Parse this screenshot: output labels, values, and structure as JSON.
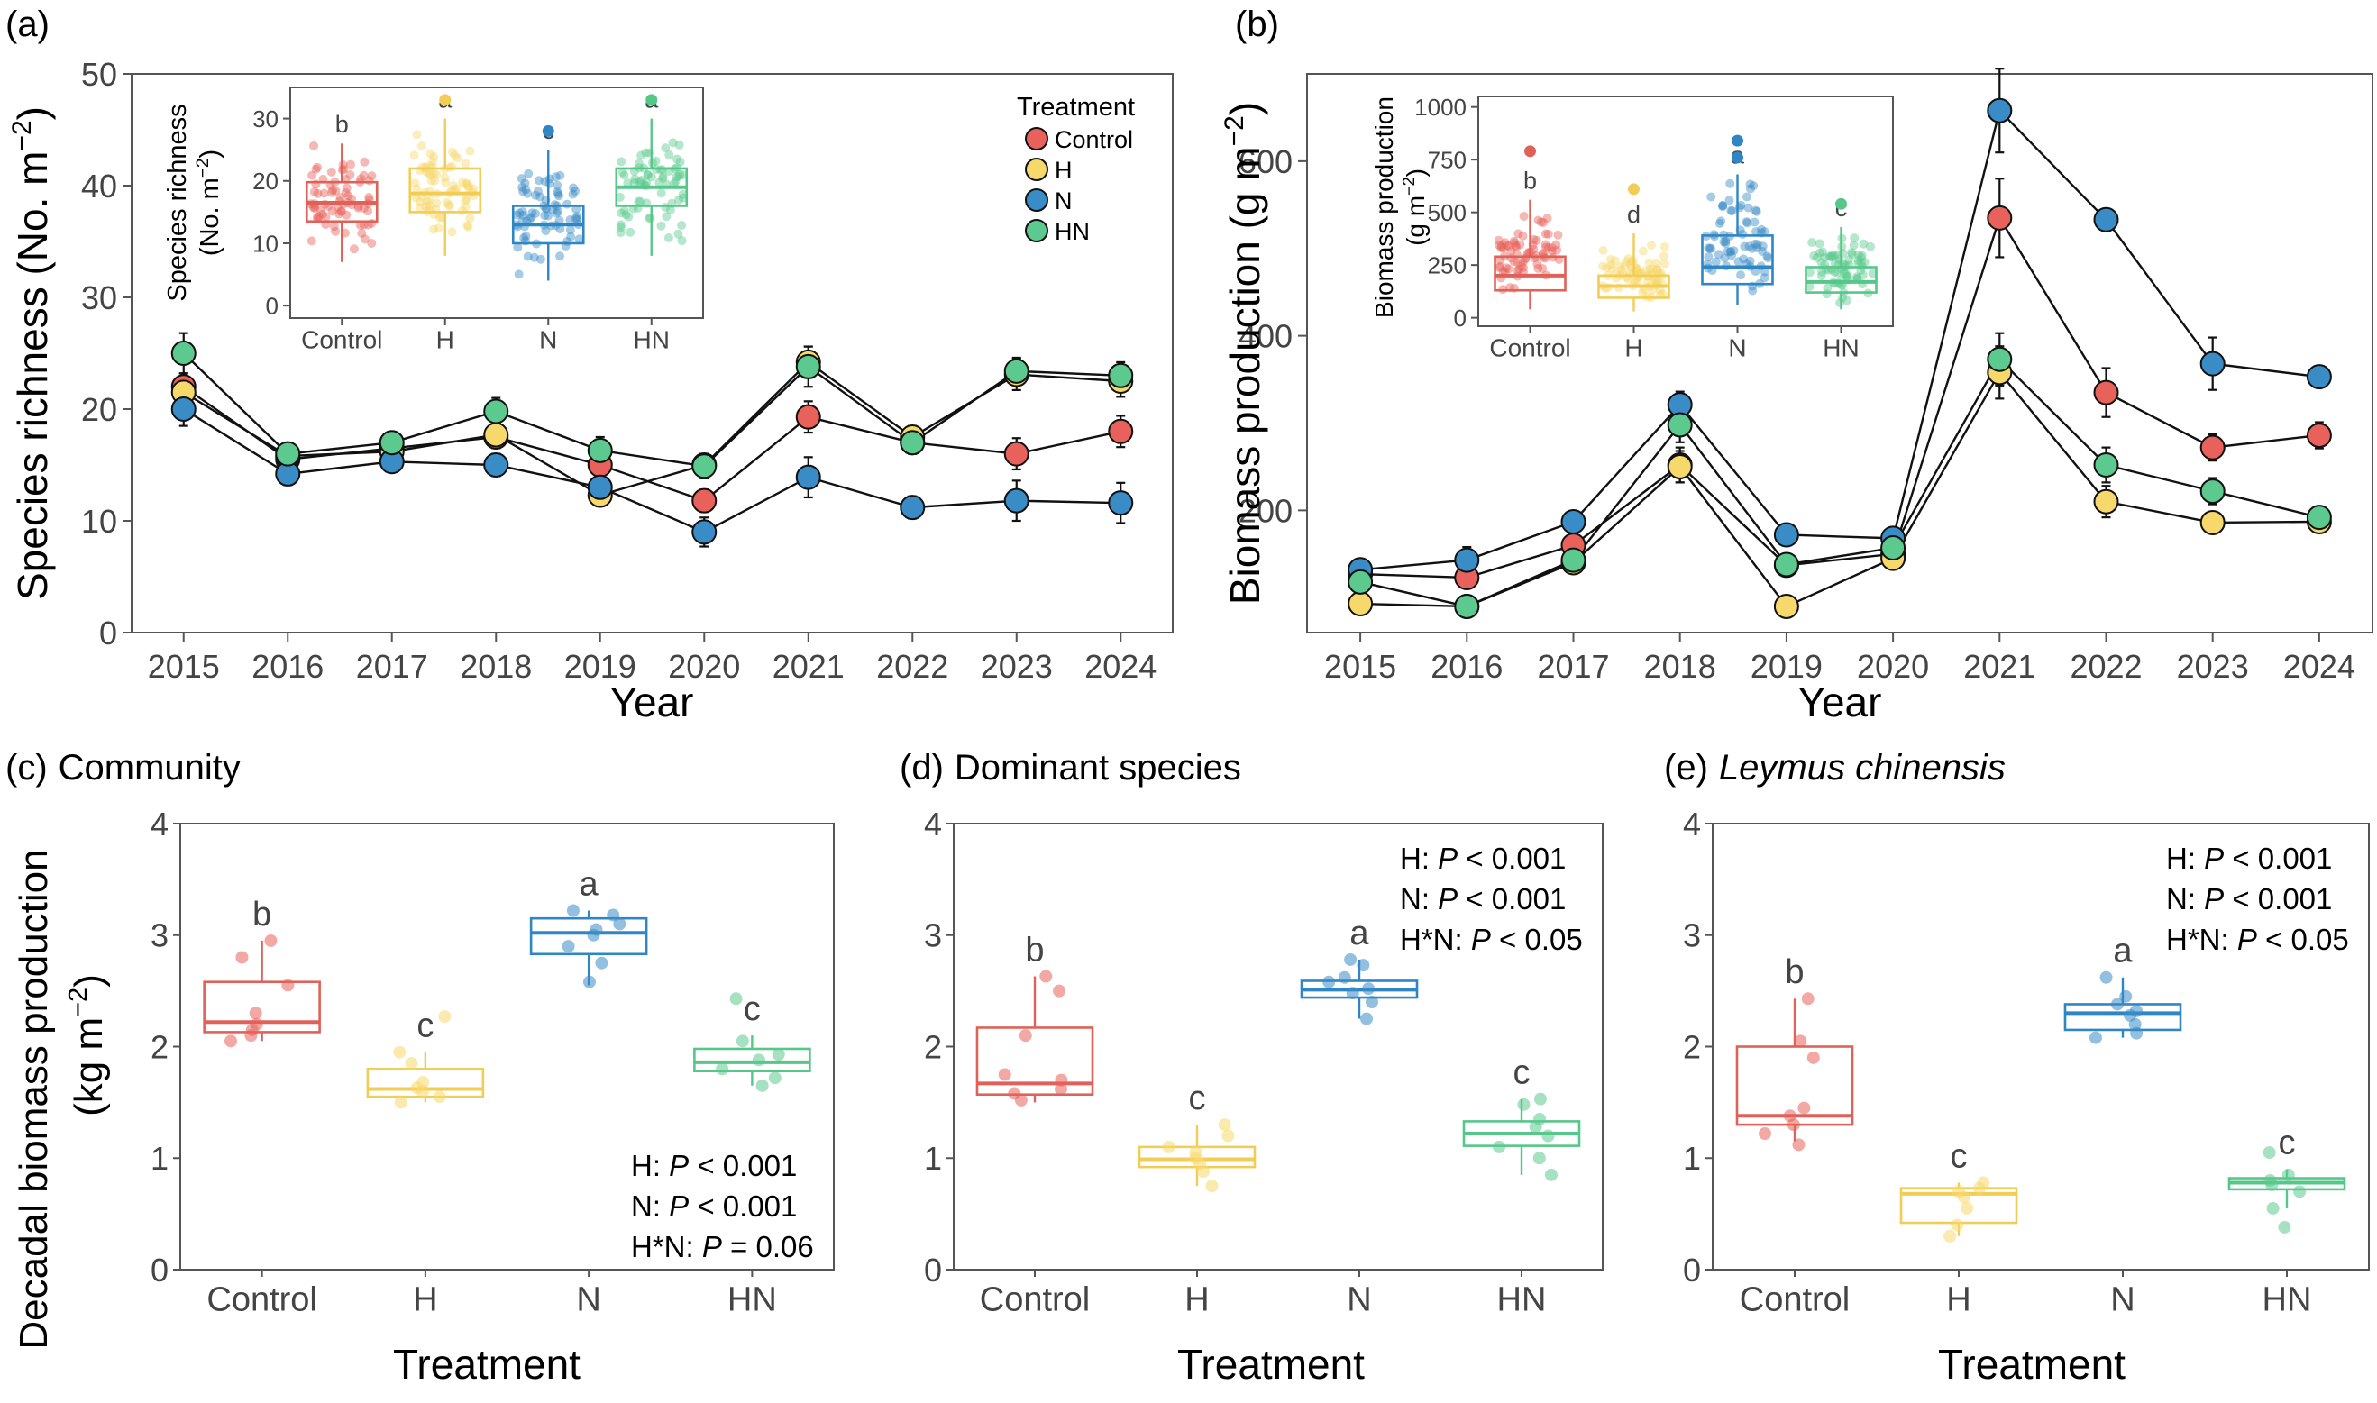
{
  "colors": {
    "Control": "#e8625b",
    "H": "#f7d86b",
    "N": "#3a8cc6",
    "HN": "#5cc98f"
  },
  "stroke_colors": {
    "Control": "#e06158",
    "H": "#f2cd55",
    "N": "#2f86c4",
    "HN": "#55c789"
  },
  "treatments": [
    "Control",
    "H",
    "N",
    "HN"
  ],
  "chart_data": [
    {
      "id": "a",
      "type": "line",
      "panel_label": "(a)",
      "xlabel": "Year",
      "ylabel": "Species richness (No. m",
      "ylabel_sup": "−2",
      "ylabel_close": ")",
      "ylim": [
        0,
        50
      ],
      "yticks": [
        "0",
        "10",
        "20",
        "30",
        "40",
        "50"
      ],
      "x": [
        "2015",
        "2016",
        "2017",
        "2018",
        "2019",
        "2020",
        "2021",
        "2022",
        "2023",
        "2024"
      ],
      "legend_title": "Treatment",
      "legend": [
        "Control",
        "H",
        "N",
        "HN"
      ],
      "series": [
        {
          "name": "Control",
          "values": [
            22,
            15.5,
            16.5,
            17.5,
            15,
            11.8,
            19.3,
            17,
            16,
            18
          ],
          "err": [
            1.2,
            0.8,
            0.8,
            1.0,
            1.0,
            1.0,
            1.4,
            1.0,
            1.4,
            1.4
          ]
        },
        {
          "name": "H",
          "values": [
            21.5,
            15.8,
            16.2,
            17.7,
            12.3,
            15,
            24.2,
            17.5,
            23.1,
            22.5
          ],
          "err": [
            1.2,
            0.8,
            0.8,
            1.0,
            1.0,
            1.0,
            1.4,
            1.0,
            1.4,
            1.4
          ]
        },
        {
          "name": "N",
          "values": [
            20,
            14.2,
            15.3,
            15,
            13,
            9,
            13.9,
            11.2,
            11.8,
            11.6
          ],
          "err": [
            1.5,
            1.0,
            0.8,
            1.0,
            1.2,
            1.3,
            1.8,
            1.0,
            1.8,
            1.8
          ]
        },
        {
          "name": "HN",
          "values": [
            25,
            16,
            17,
            19.8,
            16.3,
            14.9,
            23.8,
            17,
            23.4,
            23
          ],
          "err": [
            1.8,
            0.8,
            0.8,
            1.2,
            1.2,
            1.1,
            1.8,
            1.0,
            1.2,
            1.2
          ]
        }
      ],
      "inset": {
        "type": "box",
        "ylabel": "Species richness",
        "ylabel2": "(No. m",
        "ylabel2_sup": "−2",
        "ylabel2_close": ")",
        "ylim": [
          -2,
          35
        ],
        "yticks": [
          "0",
          "10",
          "20",
          "30"
        ],
        "categories": [
          "Control",
          "H",
          "N",
          "HN"
        ],
        "letters": [
          "b",
          "a",
          "c",
          "a"
        ],
        "boxes": [
          {
            "name": "Control",
            "min": 7,
            "q1": 13.5,
            "median": 16.5,
            "q3": 19.8,
            "max": 26
          },
          {
            "name": "H",
            "min": 8,
            "q1": 15,
            "median": 18,
            "q3": 22,
            "max": 30
          },
          {
            "name": "N",
            "min": 4,
            "q1": 10,
            "median": 13,
            "q3": 16,
            "max": 25
          },
          {
            "name": "HN",
            "min": 8,
            "q1": 16,
            "median": 19,
            "q3": 22,
            "max": 30
          }
        ],
        "outliers": [
          {
            "name": "H",
            "value": 33
          },
          {
            "name": "N",
            "value": 28
          },
          {
            "name": "HN",
            "value": 33
          }
        ]
      }
    },
    {
      "id": "b",
      "type": "line",
      "panel_label": "(b)",
      "xlabel": "Year",
      "ylabel": "Biomass production (g m",
      "ylabel_sup": "−2",
      "ylabel_close": ")",
      "ylim": [
        60,
        700
      ],
      "yticks": [
        "200",
        "400",
        "600"
      ],
      "ytick_values": [
        200,
        400,
        600
      ],
      "x": [
        "2015",
        "2016",
        "2017",
        "2018",
        "2019",
        "2020",
        "2021",
        "2022",
        "2023",
        "2024"
      ],
      "series": [
        {
          "name": "Control",
          "values": [
            127,
            123,
            160,
            252,
            137,
            150,
            535,
            335,
            272,
            286
          ],
          "err": [
            8,
            8,
            10,
            20,
            10,
            10,
            45,
            28,
            15,
            15
          ]
        },
        {
          "name": "H",
          "values": [
            93,
            90,
            140,
            250,
            90,
            145,
            358,
            210,
            186,
            187
          ],
          "err": [
            8,
            8,
            10,
            18,
            8,
            10,
            30,
            18,
            10,
            10
          ]
        },
        {
          "name": "N",
          "values": [
            132,
            143,
            187,
            321,
            172,
            168,
            658,
            533,
            368,
            353
          ],
          "err": [
            10,
            15,
            10,
            15,
            10,
            10,
            48,
            12,
            30,
            10
          ]
        },
        {
          "name": "HN",
          "values": [
            118,
            90,
            143,
            298,
            138,
            157,
            373,
            252,
            222,
            192
          ],
          "err": [
            8,
            8,
            10,
            20,
            10,
            10,
            30,
            20,
            15,
            10
          ]
        }
      ],
      "inset": {
        "type": "box",
        "ylabel": "Biomass production",
        "ylabel2": "(g m",
        "ylabel2_sup": "−2",
        "ylabel2_close": ")",
        "ylim": [
          -40,
          1050
        ],
        "yticks": [
          "0",
          "250",
          "500",
          "750",
          "1000"
        ],
        "ytick_values": [
          0,
          250,
          500,
          750,
          1000
        ],
        "categories": [
          "Control",
          "H",
          "N",
          "HN"
        ],
        "letters": [
          "b",
          "d",
          "a",
          "c"
        ],
        "boxes": [
          {
            "name": "Control",
            "min": 40,
            "q1": 130,
            "median": 200,
            "q3": 290,
            "max": 560
          },
          {
            "name": "H",
            "min": 30,
            "q1": 95,
            "median": 150,
            "q3": 200,
            "max": 400
          },
          {
            "name": "N",
            "min": 60,
            "q1": 160,
            "median": 240,
            "q3": 390,
            "max": 680
          },
          {
            "name": "HN",
            "min": 40,
            "q1": 120,
            "median": 170,
            "q3": 240,
            "max": 430
          }
        ],
        "outliers": [
          {
            "name": "Control",
            "value": 790
          },
          {
            "name": "H",
            "value": 610
          },
          {
            "name": "N",
            "value": 760
          },
          {
            "name": "N",
            "value": 840
          },
          {
            "name": "HN",
            "value": 540
          }
        ]
      }
    },
    {
      "id": "c",
      "type": "box",
      "panel_label": "(c)",
      "subtitle": "Community",
      "xlabel": "Treatment",
      "ylabel": "Decadal biomass production",
      "ylabel2": "(kg m",
      "ylabel2_sup": "−2",
      "ylabel2_close": ")",
      "ylim": [
        0,
        4
      ],
      "yticks": [
        "0",
        "1",
        "2",
        "3",
        "4"
      ],
      "categories": [
        "Control",
        "H",
        "N",
        "HN"
      ],
      "letters": [
        "b",
        "c",
        "a",
        "c"
      ],
      "boxes": [
        {
          "name": "Control",
          "min": 2.05,
          "q1": 2.13,
          "median": 2.22,
          "q3": 2.58,
          "max": 2.95,
          "points": [
            2.05,
            2.1,
            2.15,
            2.2,
            2.3,
            2.55,
            2.8,
            2.95
          ]
        },
        {
          "name": "H",
          "min": 1.5,
          "q1": 1.55,
          "median": 1.62,
          "q3": 1.8,
          "max": 1.95,
          "points": [
            1.5,
            1.55,
            1.6,
            1.63,
            1.68,
            1.85,
            1.95,
            2.27
          ]
        },
        {
          "name": "N",
          "min": 2.55,
          "q1": 2.83,
          "median": 3.02,
          "q3": 3.15,
          "max": 3.22,
          "points": [
            2.58,
            2.75,
            2.9,
            3.0,
            3.05,
            3.1,
            3.18,
            3.22
          ]
        },
        {
          "name": "HN",
          "min": 1.65,
          "q1": 1.78,
          "median": 1.86,
          "q3": 1.98,
          "max": 2.1,
          "points": [
            1.65,
            1.72,
            1.8,
            1.88,
            1.93,
            2.05,
            2.43
          ]
        }
      ],
      "stats": [
        {
          "term": "H: ",
          "p": "P",
          "rest": " < 0.001"
        },
        {
          "term": "N: ",
          "p": "P",
          "rest": " < 0.001"
        },
        {
          "term": "H*N: ",
          "p": "P",
          "rest": " = 0.06"
        }
      ],
      "stats_pos": "bottom-right"
    },
    {
      "id": "d",
      "type": "box",
      "panel_label": "(d)",
      "subtitle": "Dominant species",
      "xlabel": "Treatment",
      "ylim": [
        0,
        4
      ],
      "yticks": [
        "0",
        "1",
        "2",
        "3",
        "4"
      ],
      "categories": [
        "Control",
        "H",
        "N",
        "HN"
      ],
      "letters": [
        "b",
        "c",
        "a",
        "c"
      ],
      "boxes": [
        {
          "name": "Control",
          "min": 1.5,
          "q1": 1.57,
          "median": 1.67,
          "q3": 2.17,
          "max": 2.63,
          "points": [
            1.52,
            1.58,
            1.62,
            1.7,
            1.75,
            2.1,
            2.5,
            2.63
          ]
        },
        {
          "name": "H",
          "min": 0.75,
          "q1": 0.92,
          "median": 0.99,
          "q3": 1.1,
          "max": 1.3,
          "points": [
            0.75,
            0.88,
            0.95,
            1.0,
            1.05,
            1.1,
            1.2,
            1.3
          ]
        },
        {
          "name": "N",
          "min": 2.25,
          "q1": 2.44,
          "median": 2.51,
          "q3": 2.59,
          "max": 2.78,
          "points": [
            2.25,
            2.4,
            2.48,
            2.52,
            2.58,
            2.62,
            2.73,
            2.78
          ]
        },
        {
          "name": "HN",
          "min": 0.85,
          "q1": 1.11,
          "median": 1.22,
          "q3": 1.33,
          "max": 1.53,
          "points": [
            0.85,
            1.0,
            1.1,
            1.2,
            1.28,
            1.35,
            1.48,
            1.53
          ]
        }
      ],
      "stats": [
        {
          "term": "H: ",
          "p": "P",
          "rest": " < 0.001"
        },
        {
          "term": "N: ",
          "p": "P",
          "rest": " < 0.001"
        },
        {
          "term": "H*N: ",
          "p": "P",
          "rest": " < 0.05"
        }
      ],
      "stats_pos": "top-right"
    },
    {
      "id": "e",
      "type": "box",
      "panel_label": "(e)",
      "subtitle": "Leymus chinensis",
      "subtitle_italic": true,
      "xlabel": "Treatment",
      "ylim": [
        0,
        4
      ],
      "yticks": [
        "0",
        "1",
        "2",
        "3",
        "4"
      ],
      "categories": [
        "Control",
        "H",
        "N",
        "HN"
      ],
      "letters": [
        "b",
        "c",
        "a",
        "c"
      ],
      "boxes": [
        {
          "name": "Control",
          "min": 1.15,
          "q1": 1.3,
          "median": 1.38,
          "q3": 2.0,
          "max": 2.43,
          "points": [
            1.12,
            1.22,
            1.3,
            1.38,
            1.45,
            1.9,
            2.05,
            2.43
          ]
        },
        {
          "name": "H",
          "min": 0.3,
          "q1": 0.42,
          "median": 0.68,
          "q3": 0.73,
          "max": 0.78,
          "points": [
            0.3,
            0.4,
            0.55,
            0.65,
            0.7,
            0.73,
            0.78
          ]
        },
        {
          "name": "N",
          "min": 2.08,
          "q1": 2.15,
          "median": 2.3,
          "q3": 2.38,
          "max": 2.62,
          "points": [
            2.08,
            2.12,
            2.2,
            2.28,
            2.32,
            2.38,
            2.45,
            2.62
          ]
        },
        {
          "name": "HN",
          "min": 0.55,
          "q1": 0.72,
          "median": 0.78,
          "q3": 0.82,
          "max": 0.9,
          "points": [
            0.38,
            0.55,
            0.7,
            0.76,
            0.8,
            0.85,
            1.05
          ]
        }
      ],
      "stats": [
        {
          "term": "H: ",
          "p": "P",
          "rest": " < 0.001"
        },
        {
          "term": "N: ",
          "p": "P",
          "rest": " < 0.001"
        },
        {
          "term": "H*N: ",
          "p": "P",
          "rest": " < 0.05"
        }
      ],
      "stats_pos": "top-right"
    }
  ]
}
